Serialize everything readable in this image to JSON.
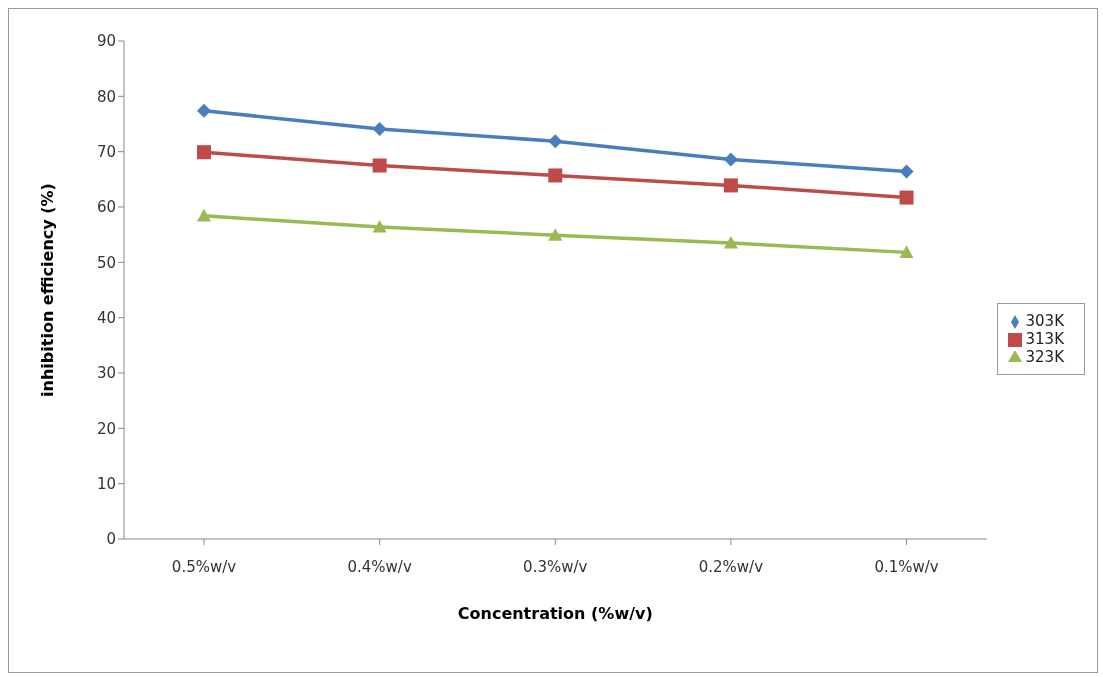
{
  "chart_data": {
    "type": "line",
    "xlabel": "Concentration (%w/v)",
    "ylabel": "inhibition efficiency (%)",
    "categories": [
      "0.5%w/v",
      "0.4%w/v",
      "0.3%w/v",
      "0.2%w/v",
      "0.1%w/v"
    ],
    "series": [
      {
        "name": "303K",
        "color": "#4a7ebb",
        "marker": "diamond",
        "values": [
          77.4,
          74.1,
          71.9,
          68.6,
          66.4
        ]
      },
      {
        "name": "313K",
        "color": "#be4b48",
        "marker": "square",
        "values": [
          69.9,
          67.5,
          65.7,
          63.9,
          61.7
        ]
      },
      {
        "name": "323K",
        "color": "#98b954",
        "marker": "triangle",
        "values": [
          58.4,
          56.4,
          54.9,
          53.5,
          51.8
        ]
      }
    ],
    "ylim": [
      0,
      90
    ],
    "yticks": [
      0,
      10,
      20,
      30,
      40,
      50,
      60,
      70,
      80,
      90
    ],
    "grid": false,
    "legend": "right",
    "line_style": "solid"
  }
}
